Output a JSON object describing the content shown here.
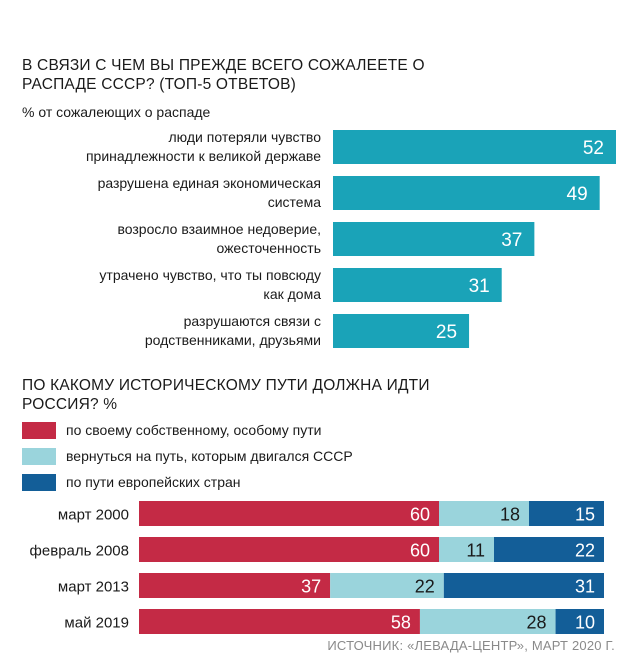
{
  "chart_data": [
    {
      "type": "bar",
      "title": "В СВЯЗИ С ЧЕМ ВЫ ПРЕЖДЕ ВСЕГО СОЖАЛЕЕТЕ О РАСПАДЕ СССР? (ТОП-5 ОТВЕТОВ)",
      "subtitle": "% от сожалеющих о распаде",
      "categories": [
        [
          "люди потеряли чувство",
          "принадлежности к великой державе"
        ],
        [
          "разрушена единая экономическая",
          "система"
        ],
        [
          "возросло взаимное недоверие,",
          "ожесточенность"
        ],
        [
          "утрачено чувство, что ты повсюду",
          "как дома"
        ],
        [
          "разрушаются связи с",
          "родственниками, друзьями"
        ]
      ],
      "values": [
        52,
        49,
        37,
        31,
        25
      ],
      "xlim": [
        0,
        52
      ],
      "color": "#1aa3b8"
    },
    {
      "type": "bar",
      "stacked": true,
      "title": "ПО КАКОМУ ИСТОРИЧЕСКОМУ ПУТИ ДОЛЖНА ИДТИ РОССИЯ? %",
      "categories": [
        "март 2000",
        "февраль 2008",
        "март 2013",
        "май 2019"
      ],
      "series": [
        {
          "name": "по своему собственному, особому пути",
          "color": "#c42a45",
          "values": [
            60,
            60,
            37,
            58
          ]
        },
        {
          "name": "вернуться на путь, которым двигался СССР",
          "color": "#9ad4dc",
          "values": [
            18,
            11,
            22,
            28
          ]
        },
        {
          "name": "по пути европейских стран",
          "color": "#135e98",
          "values": [
            15,
            22,
            31,
            10
          ]
        }
      ]
    }
  ],
  "source": "ИСТОЧНИК: «ЛЕВАДА-ЦЕНТР», МАРТ 2020 Г."
}
